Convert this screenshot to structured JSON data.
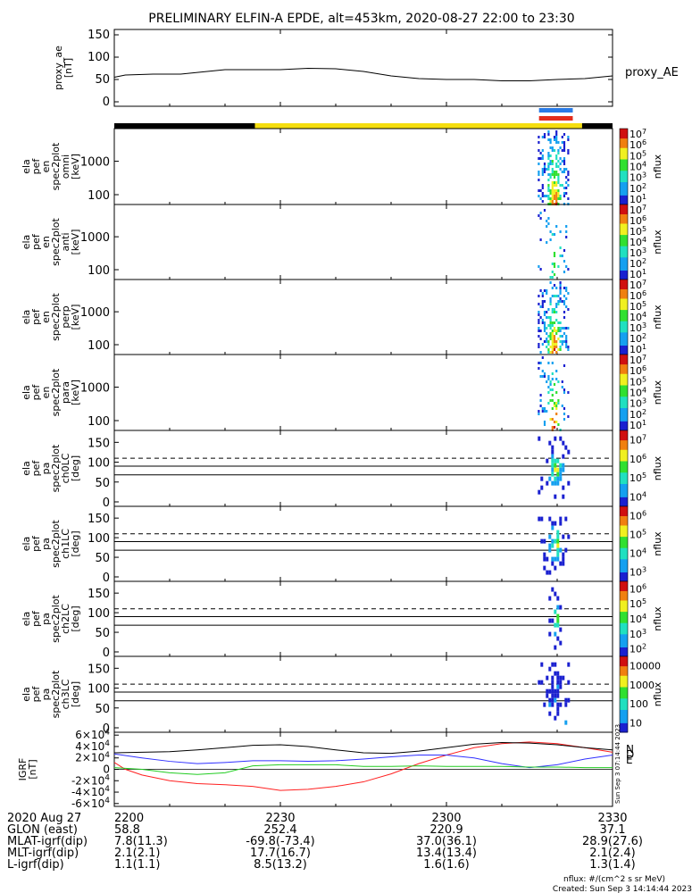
{
  "title": "PRELIMINARY ELFIN-A EPDE, alt=453km, 2020-08-27 22:00 to 23:30",
  "time_axis": {
    "start_min": 0,
    "end_min": 90,
    "ticks": [
      {
        "min": 0,
        "label": "2200"
      },
      {
        "min": 30,
        "label": "2230"
      },
      {
        "min": 60,
        "label": "2300"
      },
      {
        "min": 90,
        "label": "2330"
      }
    ]
  },
  "proxy_ae_panel": {
    "ylabel_lines": [
      "proxy_ae",
      "[nT]"
    ],
    "yticks": [
      "0",
      "50",
      "100",
      "150"
    ],
    "series_label": "proxy_AE"
  },
  "status_bar": {
    "segments": [
      {
        "from_min": 0,
        "to_min": 25.4,
        "color": "#000000"
      },
      {
        "from_min": 25.4,
        "to_min": 84.5,
        "color": "#f5de0f"
      },
      {
        "from_min": 84.5,
        "to_min": 90,
        "color": "#000000"
      }
    ],
    "markers": [
      {
        "from_min": 76.4,
        "to_min": 82.5,
        "color": "#2a7be6"
      },
      {
        "from_min": 76.4,
        "to_min": 82.5,
        "color": "#e32d1c"
      }
    ]
  },
  "energy_panels": [
    {
      "ylabel_lines": [
        "ela",
        "pef",
        "en",
        "spec2plot",
        "omni",
        "[keV]"
      ],
      "yticks": [
        "100",
        "1000"
      ],
      "cbar_ticks": [
        "10^1",
        "10^2",
        "10^3",
        "10^4",
        "10^5",
        "10^6",
        "10^7"
      ],
      "cbar_label": "nflux"
    },
    {
      "ylabel_lines": [
        "ela",
        "pef",
        "en",
        "spec2plot",
        "anti",
        "[keV]"
      ],
      "yticks": [
        "100",
        "1000"
      ],
      "cbar_ticks": [
        "10^1",
        "10^2",
        "10^3",
        "10^4",
        "10^5",
        "10^6",
        "10^7"
      ],
      "cbar_label": "nflux"
    },
    {
      "ylabel_lines": [
        "ela",
        "pef",
        "en",
        "spec2plot",
        "perp",
        "[keV]"
      ],
      "yticks": [
        "100",
        "1000"
      ],
      "cbar_ticks": [
        "10^1",
        "10^2",
        "10^3",
        "10^4",
        "10^5",
        "10^6",
        "10^7"
      ],
      "cbar_label": "nflux"
    },
    {
      "ylabel_lines": [
        "ela",
        "pef",
        "en",
        "spec2plot",
        "para",
        "[keV]"
      ],
      "yticks": [
        "100",
        "1000"
      ],
      "cbar_ticks": [
        "10^1",
        "10^2",
        "10^3",
        "10^4",
        "10^5",
        "10^6",
        "10^7"
      ],
      "cbar_label": "nflux"
    }
  ],
  "pitch_panels": [
    {
      "ylabel_lines": [
        "ela",
        "pef",
        "pa",
        "spec2plot",
        "ch0LC",
        "[deg]"
      ],
      "yticks": [
        "0",
        "50",
        "100",
        "150"
      ],
      "cbar_ticks": [
        "10^4",
        "10^5",
        "10^6",
        "10^7"
      ],
      "cbar_label": "nflux"
    },
    {
      "ylabel_lines": [
        "ela",
        "pef",
        "pa",
        "spec2plot",
        "ch1LC",
        "[deg]"
      ],
      "yticks": [
        "0",
        "50",
        "100",
        "150"
      ],
      "cbar_ticks": [
        "10^3",
        "10^4",
        "10^5",
        "10^6"
      ],
      "cbar_label": "nflux"
    },
    {
      "ylabel_lines": [
        "ela",
        "pef",
        "pa",
        "spec2plot",
        "ch2LC",
        "[deg]"
      ],
      "yticks": [
        "0",
        "50",
        "100",
        "150"
      ],
      "cbar_ticks": [
        "10^2",
        "10^3",
        "10^4",
        "10^5",
        "10^6"
      ],
      "cbar_label": "nflux"
    },
    {
      "ylabel_lines": [
        "ela",
        "pef",
        "pa",
        "spec2plot",
        "ch3LC",
        "[deg]"
      ],
      "yticks": [
        "0",
        "50",
        "100",
        "150"
      ],
      "cbar_ticks": [
        "10",
        "100",
        "1000",
        "10000"
      ],
      "cbar_label": "nflux"
    }
  ],
  "igrf_panel": {
    "ylabel_lines": [
      "IGRF",
      "[nT]"
    ],
    "yticks": [
      "-6×10^4",
      "-4×10^4",
      "-2×10^4",
      "0",
      "2×10^4",
      "4×10^4",
      "6×10^4"
    ],
    "legend": [
      {
        "label": "N",
        "color": "#ff2020"
      },
      {
        "label": "D",
        "color": "#3030ff"
      },
      {
        "label": "E",
        "color": "#22cc22"
      }
    ],
    "side_note": "Sun Sep  3 07:14:44 2023"
  },
  "chart_data": [
    {
      "type": "line",
      "title": "PRELIMINARY ELFIN-A EPDE, alt=453km, 2020-08-27 22:00 to 23:30",
      "ylabel": "proxy_ae [nT]",
      "ylim": [
        0,
        150
      ],
      "series": [
        {
          "name": "proxy_AE",
          "x": [
            0,
            2,
            7,
            12,
            20,
            30,
            35,
            40,
            45,
            50,
            55,
            60,
            65,
            70,
            75,
            80,
            85,
            90
          ],
          "values": [
            55,
            60,
            62,
            62,
            72,
            72,
            75,
            74,
            68,
            58,
            52,
            50,
            50,
            47,
            47,
            50,
            52,
            58
          ]
        }
      ]
    },
    {
      "type": "heatmap",
      "title": "",
      "ylabel": "ela pef en spec2plot [keV]",
      "ylim_keV": [
        50,
        7000
      ],
      "colorbar": {
        "label": "nflux",
        "range": [
          10,
          10000000
        ],
        "scale": "log"
      },
      "active_interval_min": [
        76.5,
        82.0
      ]
    },
    {
      "type": "heatmap",
      "title": "",
      "ylabel": "ela pef pa spec2plot [deg]",
      "ylim_deg": [
        0,
        180
      ],
      "reference_lines_deg": [
        {
          "value": 110,
          "style": "dashed"
        },
        {
          "value": 90,
          "style": "solid"
        },
        {
          "value": 68,
          "style": "solid"
        }
      ],
      "colorbar": {
        "label": "nflux",
        "scale": "log"
      },
      "active_interval_min": [
        76.5,
        82.0
      ]
    },
    {
      "type": "line",
      "title": "",
      "ylabel": "IGRF [nT]",
      "ylim": [
        -65000,
        65000
      ],
      "series": [
        {
          "name": "N",
          "color": "#ff2020",
          "x": [
            0,
            2,
            5,
            10,
            15,
            20,
            25,
            30,
            35,
            40,
            45,
            50,
            55,
            60,
            65,
            70,
            75,
            80,
            85,
            90
          ],
          "values": [
            12000,
            0,
            -10000,
            -20000,
            -25000,
            -27000,
            -30000,
            -37000,
            -35000,
            -30000,
            -22000,
            -8000,
            10000,
            25000,
            38000,
            45000,
            48000,
            45000,
            38000,
            30000
          ]
        },
        {
          "name": "D",
          "color": "#3030ff",
          "x": [
            0,
            5,
            10,
            15,
            20,
            25,
            30,
            35,
            40,
            45,
            50,
            55,
            60,
            65,
            70,
            75,
            80,
            85,
            90
          ],
          "values": [
            27000,
            20000,
            14000,
            10000,
            12000,
            15000,
            15000,
            14000,
            15000,
            18000,
            22000,
            25000,
            25000,
            20000,
            10000,
            3000,
            8000,
            18000,
            25000
          ]
        },
        {
          "name": "E",
          "color": "#22cc22",
          "x": [
            0,
            5,
            10,
            15,
            20,
            25,
            30,
            35,
            40,
            45,
            50,
            55,
            60,
            65,
            70,
            75,
            80,
            85,
            90
          ],
          "values": [
            3000,
            0,
            -6000,
            -9000,
            -6000,
            6000,
            8000,
            8000,
            8000,
            5000,
            5000,
            6000,
            5000,
            5000,
            5000,
            4000,
            4000,
            3000,
            3000
          ]
        },
        {
          "name": "",
          "color": "#000000",
          "x": [
            0,
            5,
            10,
            15,
            20,
            25,
            30,
            35,
            40,
            45,
            50,
            55,
            60,
            65,
            70,
            75,
            80,
            85,
            90
          ],
          "values": [
            29000,
            30000,
            31000,
            34000,
            38000,
            42000,
            43000,
            40000,
            34000,
            29000,
            28000,
            32000,
            38000,
            44000,
            47000,
            46000,
            43000,
            38000,
            34000
          ]
        }
      ]
    }
  ],
  "info_rows": [
    {
      "label": "2020 Aug 27",
      "values": [
        "2200",
        "2230",
        "2300",
        "2330"
      ]
    },
    {
      "label": "GLON (east)",
      "values": [
        "58.8",
        "252.4",
        "220.9",
        "37.1"
      ]
    },
    {
      "label": "MLAT-igrf(dip)",
      "values": [
        "7.8(11.3)",
        "-69.8(-73.4)",
        "37.0(36.1)",
        "28.9(27.6)"
      ]
    },
    {
      "label": "MLT-igrf(dip)",
      "values": [
        "2.1(2.1)",
        "17.7(16.7)",
        "13.4(13.4)",
        "2.1(2.4)"
      ]
    },
    {
      "label": "L-igrf(dip)",
      "values": [
        "1.1(1.1)",
        "8.5(13.2)",
        "1.6(1.6)",
        "1.3(1.4)"
      ]
    }
  ],
  "footer": {
    "units": "nflux: #/(cm^2 s sr MeV)",
    "created": "Created: Sun Sep  3 14:14:44 2023"
  }
}
